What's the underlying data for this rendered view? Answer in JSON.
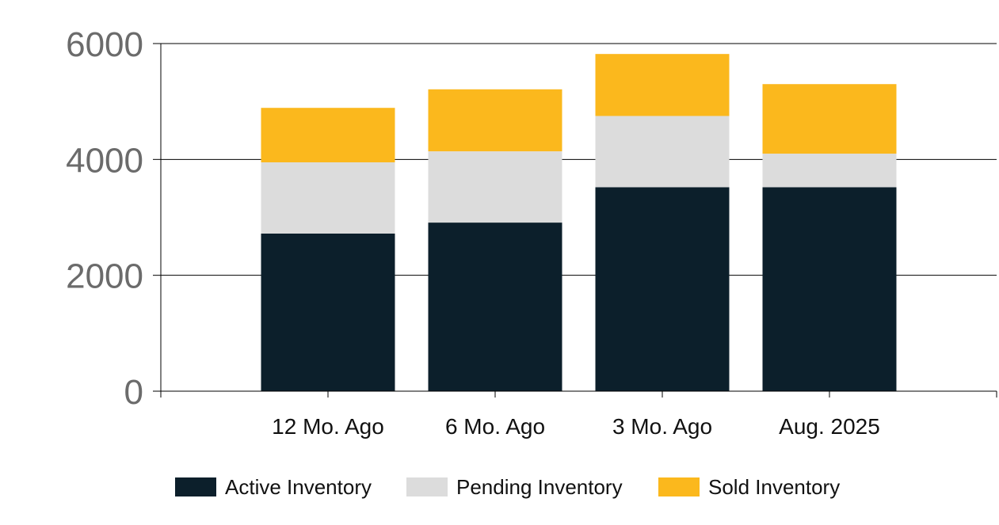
{
  "chart_data": {
    "type": "bar",
    "stacked": true,
    "categories": [
      "12 Mo. Ago",
      "6 Mo. Ago",
      "3 Mo. Ago",
      "Aug. 2025"
    ],
    "series": [
      {
        "name": "Active Inventory",
        "values": [
          2720,
          2910,
          3520,
          3520
        ],
        "color": "#0c1f2b"
      },
      {
        "name": "Pending Inventory",
        "values": [
          1230,
          1230,
          1230,
          580
        ],
        "color": "#dcdcdc"
      },
      {
        "name": "Sold Inventory",
        "values": [
          940,
          1070,
          1070,
          1200
        ],
        "color": "#fbb81d"
      }
    ],
    "ylim": [
      0,
      6000
    ],
    "yticks": [
      0,
      2000,
      4000,
      6000
    ],
    "grid": true,
    "legend_position": "bottom",
    "title": "",
    "xlabel": "",
    "ylabel": ""
  }
}
